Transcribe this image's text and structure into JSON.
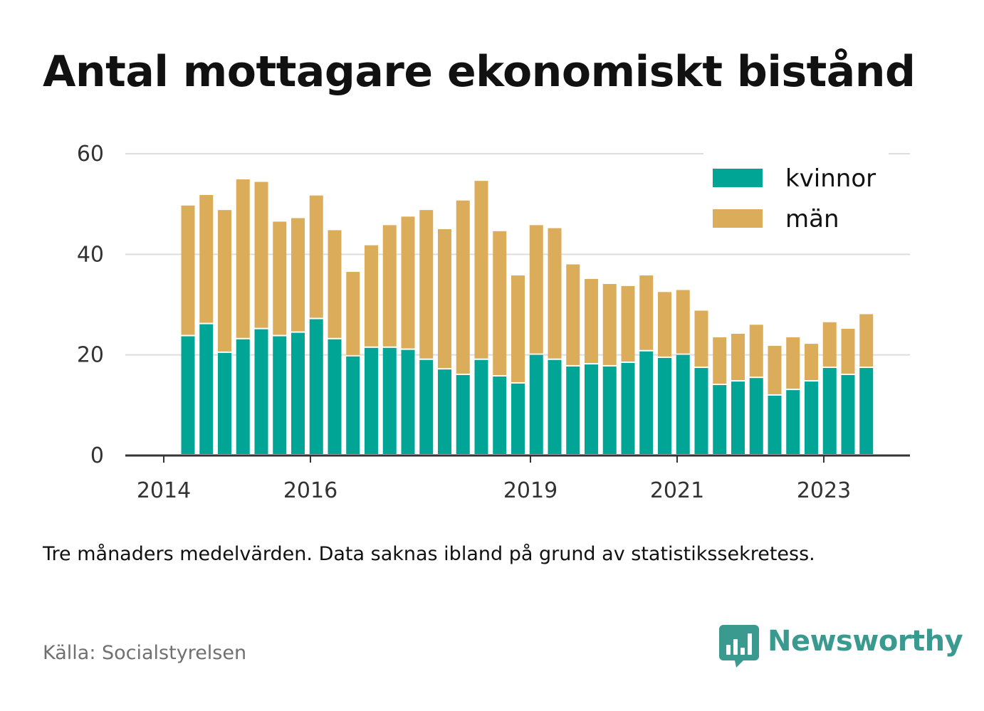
{
  "title": "Antal mottagare ekonomiskt bistånd",
  "note": "Tre månaders medelvärden. Data saknas ibland på grund av statistikssekretess.",
  "source": "Källa: Socialstyrelsen",
  "brand": {
    "name": "Newsworthy",
    "icon": "newsworthy-logo-icon",
    "color": "#3a9a90"
  },
  "colors": {
    "kvinnor": "#00a596",
    "man": "#dbad5a",
    "grid": "#dddddd",
    "axis": "#333333"
  },
  "chart_data": {
    "type": "bar",
    "stacked": true,
    "title": "Antal mottagare ekonomiskt bistånd",
    "xlabel": "",
    "ylabel": "",
    "ylim": [
      0,
      60
    ],
    "yticks": [
      0,
      20,
      40,
      60
    ],
    "x_tick_labels": [
      {
        "label": "2014",
        "pos": 2014.0
      },
      {
        "label": "2016",
        "pos": 2016.0
      },
      {
        "label": "2019",
        "pos": 2019.0
      },
      {
        "label": "2021",
        "pos": 2021.0
      },
      {
        "label": "2023",
        "pos": 2023.0
      }
    ],
    "grid": true,
    "legend": "top-right",
    "x": [
      2014.33,
      2014.58,
      2014.83,
      2015.08,
      2015.33,
      2015.58,
      2015.83,
      2016.08,
      2016.33,
      2016.58,
      2016.83,
      2017.08,
      2017.33,
      2017.58,
      2017.83,
      2018.08,
      2018.33,
      2018.58,
      2018.83,
      2019.08,
      2019.33,
      2019.58,
      2019.83,
      2020.08,
      2020.33,
      2020.58,
      2020.83,
      2021.08,
      2021.33,
      2021.58,
      2021.83,
      2022.08,
      2022.33,
      2022.58,
      2022.83,
      2023.08,
      2023.33,
      2023.58
    ],
    "series": [
      {
        "name": "kvinnor",
        "values": [
          23.7,
          26.1,
          20.4,
          23.1,
          25.1,
          23.7,
          24.4,
          27.1,
          23.1,
          19.7,
          21.4,
          21.4,
          21.0,
          19.0,
          17.1,
          16.0,
          19.0,
          15.7,
          14.3,
          20.0,
          19.0,
          17.7,
          18.1,
          17.7,
          18.4,
          20.7,
          19.4,
          20.0,
          17.4,
          14.0,
          14.7,
          15.4,
          11.9,
          13.0,
          14.7,
          17.4,
          16.0,
          17.4
        ]
      },
      {
        "name": "män",
        "values": [
          26.0,
          25.7,
          28.4,
          31.8,
          29.3,
          22.8,
          22.8,
          24.6,
          21.7,
          16.8,
          20.4,
          24.4,
          26.5,
          29.8,
          27.9,
          34.7,
          35.6,
          28.9,
          21.5,
          25.8,
          26.2,
          20.3,
          17.0,
          16.4,
          15.3,
          15.1,
          13.1,
          12.9,
          11.4,
          9.5,
          9.5,
          10.6,
          9.9,
          10.5,
          7.5,
          9.1,
          9.2,
          10.7
        ]
      }
    ]
  }
}
